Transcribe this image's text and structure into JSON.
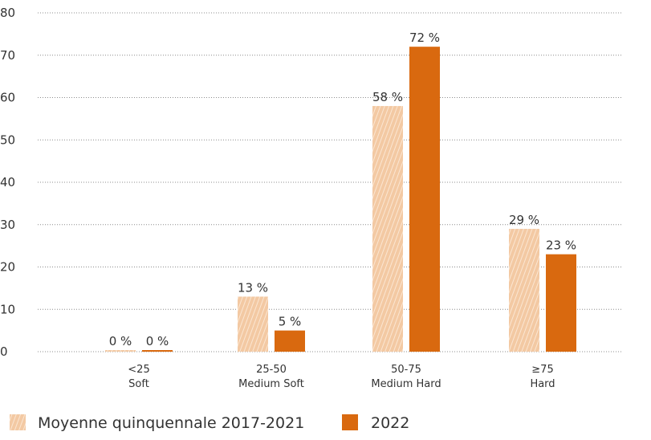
{
  "chart_data": {
    "type": "bar",
    "categories": [
      [
        "<25",
        "Soft"
      ],
      [
        "25-50",
        "Medium Soft"
      ],
      [
        "50-75",
        "Medium Hard"
      ],
      [
        "≥75",
        "Hard"
      ]
    ],
    "series": [
      {
        "name": "Moyenne quinquennale 2017-2021",
        "values": [
          0,
          13,
          58,
          29
        ],
        "labels": [
          "0 %",
          "13 %",
          "58 %",
          "29 %"
        ],
        "color": "#f3c9a3",
        "pattern": "hatched"
      },
      {
        "name": "2022",
        "values": [
          0,
          5,
          72,
          23
        ],
        "labels": [
          "0 %",
          "5 %",
          "72 %",
          "23 %"
        ],
        "color": "#d9690f",
        "pattern": "solid"
      }
    ],
    "ylim": [
      0,
      80
    ],
    "yticks": [
      "0",
      "10",
      "20",
      "30",
      "40",
      "50",
      "60",
      "70",
      "80"
    ],
    "grid": true,
    "legend_position": "bottom-left"
  }
}
